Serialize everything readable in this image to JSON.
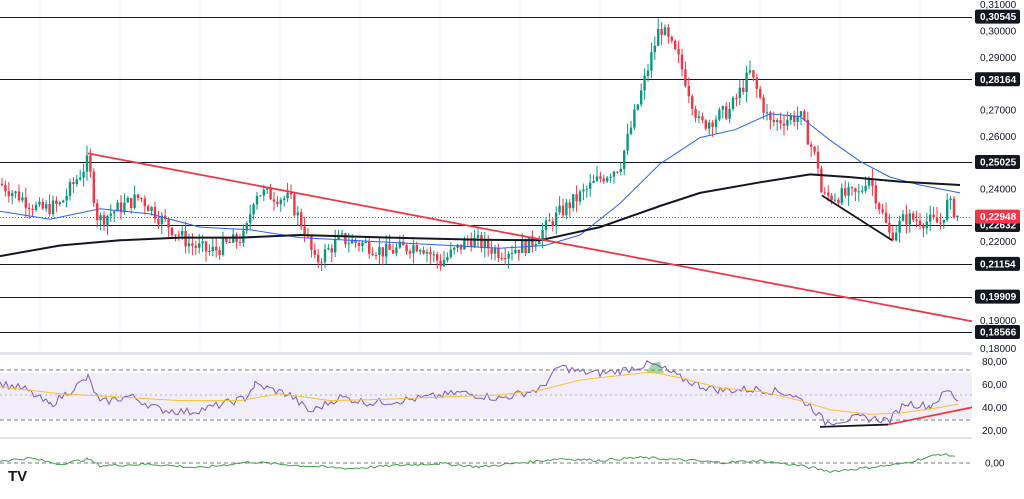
{
  "logo": {
    "text": "TV"
  },
  "chart_data": [
    {
      "type": "candlestick",
      "title": "",
      "price_axis_ticks": [
        "0,31000",
        "0,30000",
        "0,29000",
        "0,27000",
        "0,26000",
        "0,24000",
        "0,22000",
        "0,19000"
      ],
      "ylim": [
        0.183,
        0.311
      ],
      "current_price": {
        "label": "0,22948",
        "value": 0.22948,
        "color": "#f23645"
      },
      "horizontal_levels": [
        {
          "label": "0,30545",
          "value": 0.30545
        },
        {
          "label": "0,28164",
          "value": 0.28164
        },
        {
          "label": "0,25025",
          "value": 0.25025
        },
        {
          "label": "0,22632",
          "value": 0.22632
        },
        {
          "label": "0,21154",
          "value": 0.21154
        },
        {
          "label": "0,19909",
          "value": 0.19909
        },
        {
          "label": "0,18566",
          "value": 0.18566
        }
      ],
      "hidden_tick": {
        "label": "0,18000",
        "value": 0.18
      },
      "trendlines": [
        {
          "name": "descending",
          "color": "#f23645",
          "points": [
            [
              88,
              0.2535
            ],
            [
              975,
              0.1895
            ]
          ]
        },
        {
          "name": "falling-support",
          "color": "#131722",
          "points": [
            [
              822,
              0.2375
            ],
            [
              892,
              0.2205
            ]
          ]
        }
      ],
      "moving_averages": [
        {
          "name": "MA-short",
          "color": "#2962ff",
          "points": [
            [
              0,
              0.2315
            ],
            [
              50,
              0.2285
            ],
            [
              100,
              0.2325
            ],
            [
              150,
              0.2305
            ],
            [
              200,
              0.2255
            ],
            [
              250,
              0.2245
            ],
            [
              300,
              0.2215
            ],
            [
              350,
              0.2205
            ],
            [
              400,
              0.2195
            ],
            [
              450,
              0.2185
            ],
            [
              500,
              0.2175
            ],
            [
              545,
              0.2185
            ],
            [
              580,
              0.2225
            ],
            [
              620,
              0.2345
            ],
            [
              660,
              0.2495
            ],
            [
              700,
              0.2595
            ],
            [
              735,
              0.2625
            ],
            [
              770,
              0.2685
            ],
            [
              800,
              0.2675
            ],
            [
              830,
              0.2585
            ],
            [
              860,
              0.2505
            ],
            [
              890,
              0.2445
            ],
            [
              920,
              0.2415
            ],
            [
              960,
              0.2385
            ]
          ]
        },
        {
          "name": "MA-long",
          "color": "#131722",
          "points": [
            [
              0,
              0.2145
            ],
            [
              60,
              0.2185
            ],
            [
              120,
              0.2205
            ],
            [
              180,
              0.2215
            ],
            [
              240,
              0.2215
            ],
            [
              300,
              0.2225
            ],
            [
              360,
              0.2218
            ],
            [
              420,
              0.2212
            ],
            [
              480,
              0.2207
            ],
            [
              540,
              0.2205
            ],
            [
              600,
              0.2255
            ],
            [
              660,
              0.2335
            ],
            [
              700,
              0.2385
            ],
            [
              760,
              0.2425
            ],
            [
              810,
              0.2455
            ],
            [
              850,
              0.2445
            ],
            [
              900,
              0.2428
            ],
            [
              960,
              0.2415
            ]
          ]
        }
      ],
      "path": [
        [
          0,
          0.242
        ],
        [
          40,
          0.232
        ],
        [
          60,
          0.234
        ],
        [
          88,
          0.2505
        ],
        [
          98,
          0.228
        ],
        [
          120,
          0.233
        ],
        [
          140,
          0.237
        ],
        [
          160,
          0.229
        ],
        [
          190,
          0.219
        ],
        [
          210,
          0.216
        ],
        [
          245,
          0.222
        ],
        [
          255,
          0.239
        ],
        [
          290,
          0.236
        ],
        [
          305,
          0.224
        ],
        [
          315,
          0.212
        ],
        [
          340,
          0.221
        ],
        [
          365,
          0.219
        ],
        [
          385,
          0.216
        ],
        [
          420,
          0.219
        ],
        [
          440,
          0.212
        ],
        [
          470,
          0.221
        ],
        [
          500,
          0.216
        ],
        [
          530,
          0.219
        ],
        [
          560,
          0.231
        ],
        [
          600,
          0.244
        ],
        [
          620,
          0.249
        ],
        [
          640,
          0.275
        ],
        [
          660,
          0.302
        ],
        [
          680,
          0.288
        ],
        [
          700,
          0.264
        ],
        [
          730,
          0.27
        ],
        [
          750,
          0.284
        ],
        [
          770,
          0.265
        ],
        [
          800,
          0.268
        ],
        [
          818,
          0.249
        ],
        [
          822,
          0.237
        ],
        [
          860,
          0.238
        ],
        [
          868,
          0.246
        ],
        [
          890,
          0.222
        ],
        [
          905,
          0.229
        ],
        [
          940,
          0.227
        ],
        [
          948,
          0.235
        ],
        [
          958,
          0.2295
        ]
      ]
    },
    {
      "type": "line",
      "title": "",
      "ticks": [
        "80,00",
        "60,00",
        "40,00",
        "20,00"
      ],
      "ylim": [
        15,
        85
      ],
      "band": [
        30,
        70
      ],
      "series": [
        {
          "name": "RSI",
          "color": "#7e57c2",
          "points": [
            [
              0,
              61
            ],
            [
              25,
              56
            ],
            [
              50,
              42
            ],
            [
              88,
              66
            ],
            [
              100,
              44
            ],
            [
              130,
              50
            ],
            [
              160,
              38
            ],
            [
              190,
              36
            ],
            [
              210,
              40
            ],
            [
              245,
              48
            ],
            [
              255,
              60
            ],
            [
              290,
              51
            ],
            [
              310,
              36
            ],
            [
              340,
              49
            ],
            [
              370,
              44
            ],
            [
              400,
              46
            ],
            [
              430,
              49
            ],
            [
              460,
              53
            ],
            [
              500,
              48
            ],
            [
              540,
              56
            ],
            [
              560,
              76
            ],
            [
              580,
              71
            ],
            [
              600,
              70
            ],
            [
              620,
              72
            ],
            [
              650,
              78
            ],
            [
              665,
              73
            ],
            [
              680,
              66
            ],
            [
              700,
              59
            ],
            [
              720,
              55
            ],
            [
              760,
              56
            ],
            [
              790,
              52
            ],
            [
              810,
              42
            ],
            [
              825,
              27
            ],
            [
              860,
              31
            ],
            [
              890,
              29
            ],
            [
              905,
              44
            ],
            [
              930,
              41
            ],
            [
              948,
              55
            ],
            [
              958,
              46
            ]
          ]
        },
        {
          "name": "RSI-MA",
          "color": "#fbc02d",
          "points": [
            [
              0,
              58
            ],
            [
              60,
              52
            ],
            [
              120,
              49
            ],
            [
              180,
              46
            ],
            [
              240,
              46
            ],
            [
              280,
              52
            ],
            [
              330,
              46
            ],
            [
              380,
              47
            ],
            [
              440,
              49
            ],
            [
              500,
              51
            ],
            [
              540,
              55
            ],
            [
              580,
              64
            ],
            [
              620,
              68
            ],
            [
              650,
              71
            ],
            [
              680,
              66
            ],
            [
              720,
              57
            ],
            [
              760,
              54
            ],
            [
              800,
              46
            ],
            [
              830,
              38
            ],
            [
              870,
              34
            ],
            [
              900,
              35
            ],
            [
              940,
              40
            ],
            [
              958,
              43
            ]
          ]
        }
      ],
      "trendlines": [
        {
          "name": "rsi-low-line",
          "color": "#131722",
          "points": [
            [
              820,
              23
            ],
            [
              888,
              25
            ]
          ]
        },
        {
          "name": "rsi-support",
          "color": "#f23645",
          "points": [
            [
              888,
              25
            ],
            [
              972,
              40
            ]
          ]
        }
      ]
    },
    {
      "type": "line",
      "title": "",
      "ticks": [
        "0,00"
      ],
      "ylim": [
        -1,
        1
      ],
      "baseline": 0,
      "series": [
        {
          "name": "oscillator",
          "color": "#43a047",
          "points": [
            [
              0,
              0.1
            ],
            [
              30,
              0.22
            ],
            [
              60,
              -0.05
            ],
            [
              88,
              0.18
            ],
            [
              100,
              -0.12
            ],
            [
              150,
              -0.05
            ],
            [
              200,
              -0.22
            ],
            [
              250,
              0.05
            ],
            [
              300,
              -0.12
            ],
            [
              350,
              -0.25
            ],
            [
              400,
              -0.1
            ],
            [
              440,
              -0.02
            ],
            [
              480,
              -0.18
            ],
            [
              530,
              0.05
            ],
            [
              560,
              0.2
            ],
            [
              600,
              0.12
            ],
            [
              640,
              0.25
            ],
            [
              680,
              0.15
            ],
            [
              720,
              0.02
            ],
            [
              760,
              0.1
            ],
            [
              800,
              -0.12
            ],
            [
              830,
              -0.38
            ],
            [
              860,
              -0.25
            ],
            [
              900,
              -0.05
            ],
            [
              940,
              0.4
            ],
            [
              958,
              0.3
            ]
          ]
        }
      ]
    }
  ]
}
